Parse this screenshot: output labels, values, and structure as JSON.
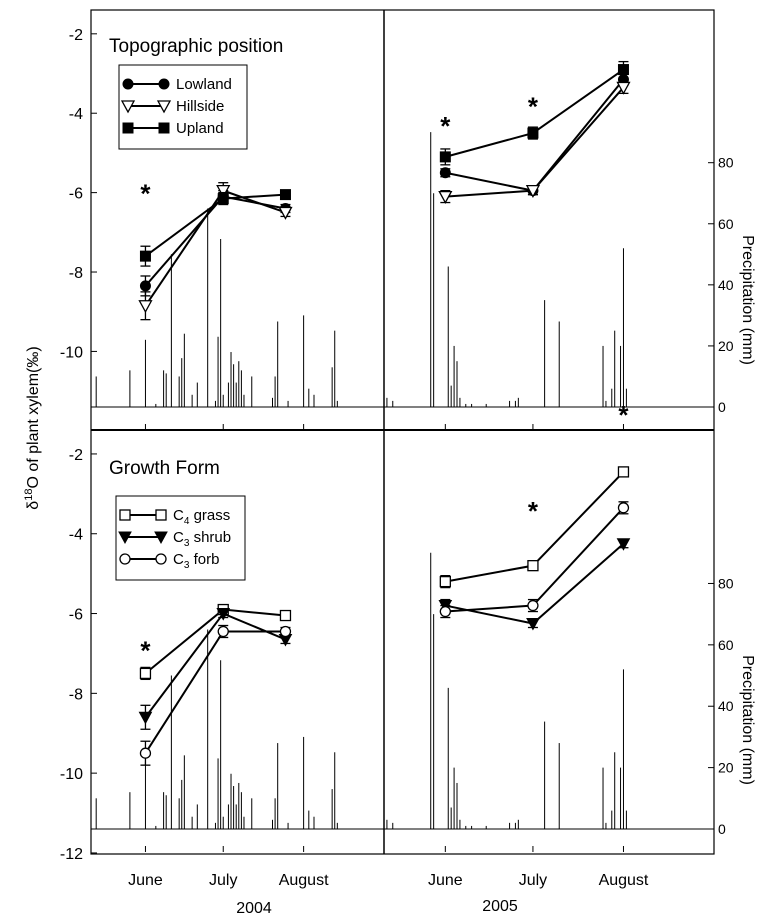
{
  "figure": {
    "y_axis_label_main": "δ",
    "y_axis_label_sup": "18",
    "y_axis_label_rest": "O of plant xylem(‰)",
    "right_axis_label": "Precipitation (mm)",
    "year_labels": [
      "2004",
      "2005"
    ]
  },
  "chart_data": [
    {
      "type": "line",
      "panel": "top",
      "title": "Topographic position",
      "legend_placement": "top-left",
      "ylim": [
        -11.4,
        -1.4
      ],
      "yticks": [
        -2,
        -4,
        -6,
        -8,
        -10
      ],
      "y2lim": [
        0,
        130
      ],
      "y2ticks": [
        0,
        20,
        40,
        60,
        80
      ],
      "y2label": "Precipitation (mm)",
      "x_2004": {
        "ticks": [
          "June",
          "July",
          "August"
        ],
        "range": [
          "2004-05-11",
          "2004-09-01"
        ]
      },
      "x_2005": {
        "ticks": [
          "June",
          "July",
          "August"
        ],
        "range": [
          "2005-05-11",
          "2005-09-01"
        ]
      },
      "series": [
        {
          "name": "Lowland",
          "marker": "filled-circle",
          "points_2004": [
            [
              "2004-06-01",
              -8.35,
              0.25
            ],
            [
              "2004-07-01",
              -6.1,
              0.15
            ],
            [
              "2004-07-25",
              -6.4,
              0.1
            ]
          ],
          "points_2005": [
            [
              "2005-06-01",
              -5.5,
              0.1
            ],
            [
              "2005-07-01",
              -5.95,
              0.1
            ],
            [
              "2005-08-01",
              -3.15,
              0.15
            ]
          ]
        },
        {
          "name": "Hillside",
          "marker": "open-triangle-down",
          "points_2004": [
            [
              "2004-06-01",
              -8.85,
              0.35
            ],
            [
              "2004-07-01",
              -5.95,
              0.2
            ],
            [
              "2004-07-25",
              -6.5,
              0.1
            ]
          ],
          "points_2005": [
            [
              "2005-06-01",
              -6.1,
              0.15
            ],
            [
              "2005-07-01",
              -5.95,
              0.1
            ],
            [
              "2005-08-01",
              -3.35,
              0.15
            ]
          ]
        },
        {
          "name": "Upland",
          "marker": "filled-square",
          "points_2004": [
            [
              "2004-06-01",
              -7.6,
              0.25
            ],
            [
              "2004-07-01",
              -6.15,
              0.15
            ],
            [
              "2004-07-25",
              -6.05,
              0.1
            ]
          ],
          "points_2005": [
            [
              "2005-06-01",
              -5.1,
              0.2
            ],
            [
              "2005-07-01",
              -4.5,
              0.15
            ],
            [
              "2005-08-01",
              -2.9,
              0.2
            ]
          ]
        }
      ],
      "significance": [
        {
          "year": "2004",
          "date": "2004-06-01",
          "y": -6.0,
          "label": "*"
        },
        {
          "year": "2005",
          "date": "2005-06-01",
          "y": -4.3,
          "label": "*"
        },
        {
          "year": "2005",
          "date": "2005-07-01",
          "y": -3.8,
          "label": "*"
        }
      ]
    },
    {
      "type": "line",
      "panel": "bottom",
      "title": "Growth Form",
      "legend_placement": "upper-left",
      "ylim": [
        -11.4,
        -1.4
      ],
      "yticks": [
        -2,
        -4,
        -6,
        -8,
        -10,
        -12
      ],
      "y2lim": [
        0,
        130
      ],
      "y2ticks": [
        0,
        20,
        40,
        60,
        80
      ],
      "y2label": "Precipitation (mm)",
      "x_2004": {
        "ticks": [
          "June",
          "July",
          "August"
        ],
        "range": [
          "2004-05-11",
          "2004-09-01"
        ]
      },
      "x_2005": {
        "ticks": [
          "June",
          "July",
          "August"
        ],
        "range": [
          "2005-05-11",
          "2005-09-01"
        ]
      },
      "series": [
        {
          "name": "C4 grass",
          "name_main": "C",
          "name_sub": "4",
          "name_rest": " grass",
          "marker": "open-square",
          "points_2004": [
            [
              "2004-06-01",
              -7.5,
              0.15
            ],
            [
              "2004-07-01",
              -5.9,
              0.1
            ],
            [
              "2004-07-25",
              -6.05,
              0.1
            ]
          ],
          "points_2005": [
            [
              "2005-06-01",
              -5.2,
              0.15
            ],
            [
              "2005-07-01",
              -4.8,
              0.1
            ],
            [
              "2005-08-01",
              -2.45,
              0.1
            ]
          ]
        },
        {
          "name": "C3 shrub",
          "name_main": "C",
          "name_sub": "3",
          "name_rest": " shrub",
          "marker": "filled-triangle-down",
          "points_2004": [
            [
              "2004-06-01",
              -8.6,
              0.3
            ],
            [
              "2004-07-01",
              -6.0,
              0.1
            ],
            [
              "2004-07-25",
              -6.65,
              0.1
            ]
          ],
          "points_2005": [
            [
              "2005-06-01",
              -5.8,
              0.15
            ],
            [
              "2005-07-01",
              -6.25,
              0.1
            ],
            [
              "2005-08-01",
              -4.25,
              0.1
            ]
          ]
        },
        {
          "name": "C3 forb",
          "name_main": "C",
          "name_sub": "3",
          "name_rest": " forb",
          "marker": "open-circle",
          "points_2004": [
            [
              "2004-06-01",
              -9.5,
              0.3
            ],
            [
              "2004-07-01",
              -6.45,
              0.15
            ],
            [
              "2004-07-25",
              -6.45,
              0.1
            ]
          ],
          "points_2005": [
            [
              "2005-06-01",
              -5.95,
              0.15
            ],
            [
              "2005-07-01",
              -5.8,
              0.15
            ],
            [
              "2005-08-01",
              -3.35,
              0.15
            ]
          ]
        }
      ],
      "significance": [
        {
          "year": "2004",
          "date": "2004-06-01",
          "y": -6.9,
          "label": "*"
        },
        {
          "year": "2005",
          "date": "2005-07-01",
          "y": -3.4,
          "label": "*"
        },
        {
          "year": "2005",
          "date": "2005-08-01",
          "y": -1.0,
          "label": "*"
        }
      ]
    }
  ],
  "precipitation": {
    "2004": [
      [
        "2004-05-13",
        10
      ],
      [
        "2004-05-26",
        12
      ],
      [
        "2004-06-01",
        22
      ],
      [
        "2004-06-05",
        1
      ],
      [
        "2004-06-08",
        12
      ],
      [
        "2004-06-09",
        11
      ],
      [
        "2004-06-11",
        50
      ],
      [
        "2004-06-14",
        10
      ],
      [
        "2004-06-15",
        16
      ],
      [
        "2004-06-16",
        24
      ],
      [
        "2004-06-19",
        4
      ],
      [
        "2004-06-21",
        8
      ],
      [
        "2004-06-25",
        65
      ],
      [
        "2004-06-28",
        2
      ],
      [
        "2004-06-29",
        23
      ],
      [
        "2004-06-30",
        55
      ],
      [
        "2004-07-01",
        4
      ],
      [
        "2004-07-03",
        8
      ],
      [
        "2004-07-04",
        18
      ],
      [
        "2004-07-05",
        14
      ],
      [
        "2004-07-06",
        8
      ],
      [
        "2004-07-07",
        15
      ],
      [
        "2004-07-08",
        12
      ],
      [
        "2004-07-09",
        4
      ],
      [
        "2004-07-12",
        10
      ],
      [
        "2004-07-20",
        3
      ],
      [
        "2004-07-21",
        10
      ],
      [
        "2004-07-22",
        28
      ],
      [
        "2004-07-26",
        2
      ],
      [
        "2004-08-01",
        30
      ],
      [
        "2004-08-03",
        6
      ],
      [
        "2004-08-05",
        4
      ],
      [
        "2004-08-12",
        13
      ],
      [
        "2004-08-13",
        25
      ],
      [
        "2004-08-14",
        2
      ]
    ],
    "2005": [
      [
        "2005-05-12",
        3
      ],
      [
        "2005-05-14",
        2
      ],
      [
        "2005-05-27",
        90
      ],
      [
        "2005-05-28",
        70
      ],
      [
        "2005-06-02",
        46
      ],
      [
        "2005-06-03",
        7
      ],
      [
        "2005-06-04",
        20
      ],
      [
        "2005-06-05",
        15
      ],
      [
        "2005-06-06",
        3
      ],
      [
        "2005-06-08",
        1
      ],
      [
        "2005-06-10",
        1
      ],
      [
        "2005-06-15",
        1
      ],
      [
        "2005-06-23",
        2
      ],
      [
        "2005-06-25",
        2
      ],
      [
        "2005-06-26",
        3
      ],
      [
        "2005-07-05",
        35
      ],
      [
        "2005-07-10",
        28
      ],
      [
        "2005-07-25",
        20
      ],
      [
        "2005-07-26",
        2
      ],
      [
        "2005-07-28",
        6
      ],
      [
        "2005-07-29",
        25
      ],
      [
        "2005-07-31",
        20
      ],
      [
        "2005-08-01",
        52
      ],
      [
        "2005-08-02",
        6
      ]
    ]
  }
}
